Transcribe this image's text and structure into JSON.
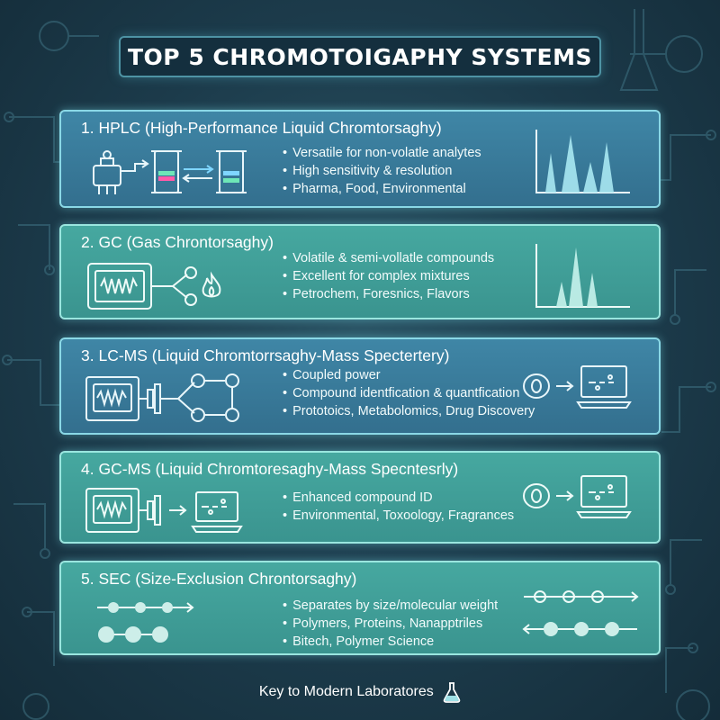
{
  "title": "TOP 5 CHROMOTOIGAPHY SYSTEMS",
  "footer": "Key to Modern Laboratores",
  "cards": [
    {
      "heading": "1. HPLC (High-Performance Liquid Chromtorsaghy)",
      "bullets": [
        "Versatile for non-volatle analytes",
        "High sensitivity & resolution",
        "Pharma, Food, Environmental"
      ],
      "theme": "blue"
    },
    {
      "heading": "2. GC (Gas Chrontorsaghy)",
      "bullets": [
        "Volatile & semi-vollatle compounds",
        "Excellent for complex mixtures",
        "Petrochem, Foresnics, Flavors"
      ],
      "theme": "teal"
    },
    {
      "heading": "3. LC-MS (Liquid Chromtorrsaghy-Mass Spectertery)",
      "bullets": [
        "Coupled power",
        "Compound identfication & quantfication",
        "Prototoics, Metabolomics, Drug Discovery"
      ],
      "theme": "blue"
    },
    {
      "heading": "4. GC-MS (Liquid Chromtoresaghy-Mass Specntesrly)",
      "bullets": [
        "Enhanced compound ID",
        "Environmental, Toxoology, Fragrances"
      ],
      "theme": "teal"
    },
    {
      "heading": "5. SEC (Size-Exclusion Chrontorsaghy)",
      "bullets": [
        "Separates by size/molecular weight",
        "Polymers, Proteins, Nanapptriles",
        "Bitech, Polymer Science"
      ],
      "theme": "teal"
    }
  ],
  "colors": {
    "card_blue": "#3f86a6",
    "card_teal": "#46a8a0",
    "background": "#1c3b4b",
    "title_box": "#142f3e"
  },
  "icons": [
    "hplc-apparatus-icon",
    "chromatogram-peaks-icon",
    "gc-oven-icon",
    "flame-icon",
    "mass-spec-icon",
    "monitor-icon",
    "molecule-chain-icon",
    "detector-icon",
    "flask-icon"
  ]
}
